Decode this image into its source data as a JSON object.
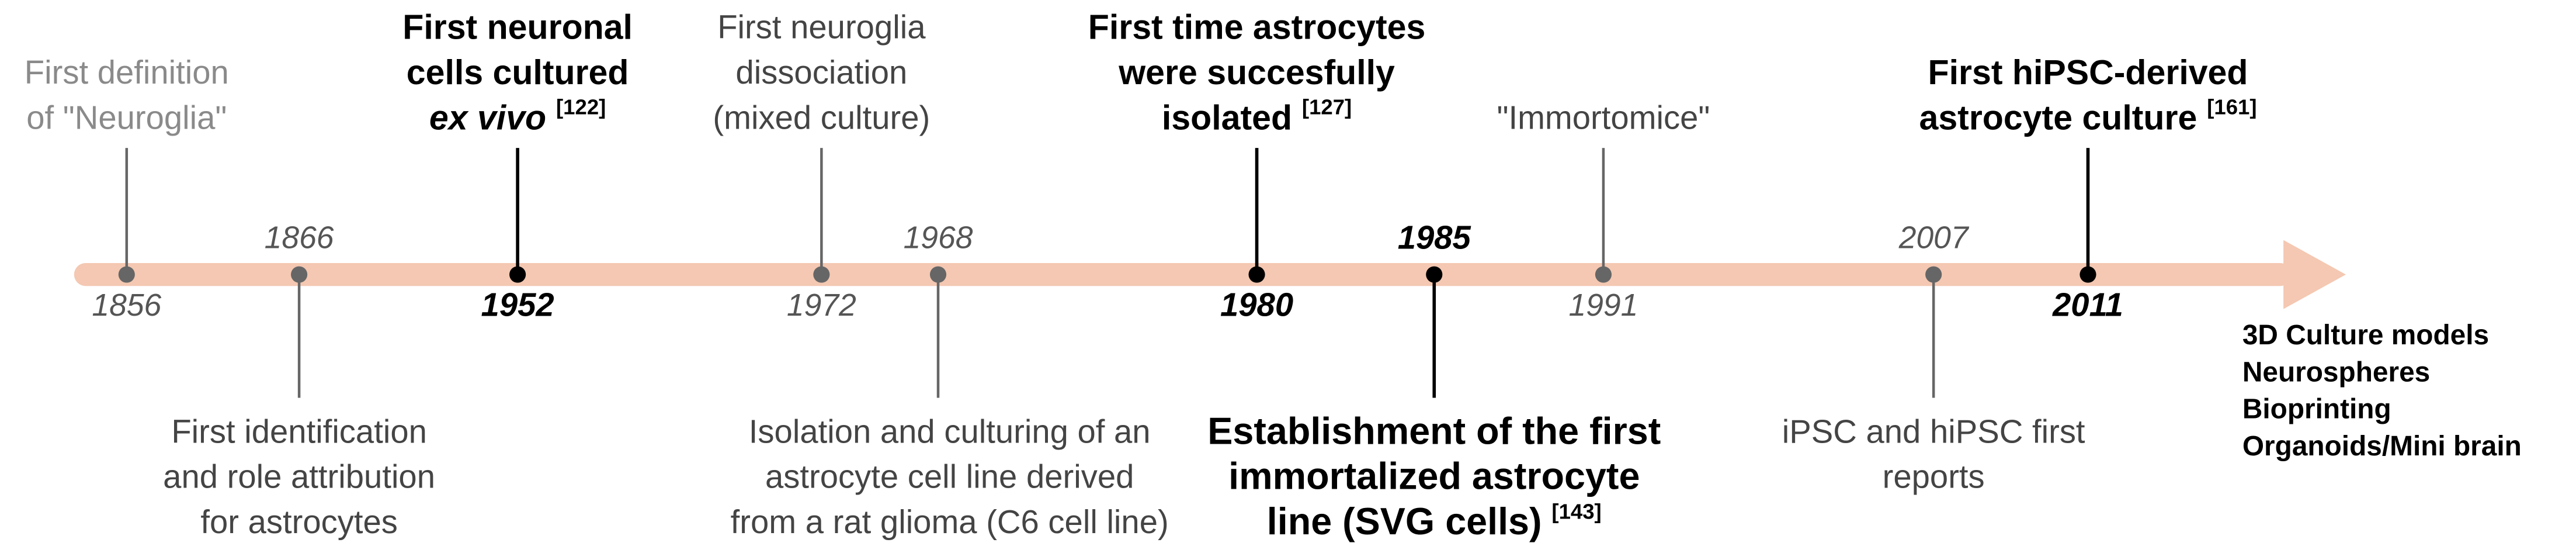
{
  "events": [
    {
      "year": "1856",
      "lines": [
        "First definition",
        "of \"Neuroglia\""
      ]
    },
    {
      "year": "1866",
      "lines": [
        "First identification",
        "and role attribution",
        "for astrocytes"
      ]
    },
    {
      "year": "1952",
      "lines": [
        "First neuronal",
        "cells cultured",
        "ex vivo"
      ],
      "ref": "[122]"
    },
    {
      "year": "1972",
      "lines": [
        "First neuroglia",
        "dissociation",
        "(mixed culture)"
      ]
    },
    {
      "year": "1968",
      "lines": [
        "Isolation and culturing of an",
        "astrocyte cell line derived",
        "from a rat glioma (C6 cell line)"
      ]
    },
    {
      "year": "1980",
      "lines": [
        "First time astrocytes",
        "were succesfully",
        "isolated"
      ],
      "ref": "[127]"
    },
    {
      "year": "1985",
      "lines": [
        "Establishment of the first",
        "immortalized astrocyte",
        "line (SVG cells)"
      ],
      "ref": "[143]"
    },
    {
      "year": "1991",
      "lines": [
        "\"Immortomice\""
      ]
    },
    {
      "year": "2007",
      "lines": [
        "iPSC and hiPSC first",
        "reports"
      ]
    },
    {
      "year": "2011",
      "lines": [
        "First hiPSC-derived",
        "astrocyte culture"
      ],
      "ref": "[161]"
    }
  ],
  "outlook": [
    "3D Culture models",
    "Neurospheres",
    "Bioprinting",
    "Organoids/Mini brain"
  ]
}
